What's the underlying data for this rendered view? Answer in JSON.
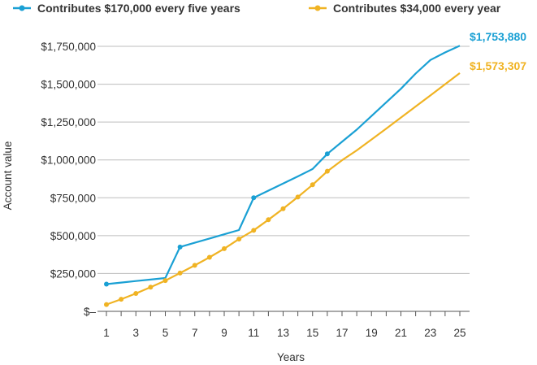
{
  "chart_data": {
    "type": "line",
    "title": "",
    "xlabel": "Years",
    "ylabel": "Account value",
    "x": [
      1,
      2,
      3,
      4,
      5,
      6,
      7,
      8,
      9,
      10,
      11,
      12,
      13,
      14,
      15,
      16,
      17,
      18,
      19,
      20,
      21,
      22,
      23,
      24,
      25
    ],
    "x_ticks": [
      "1",
      "3",
      "5",
      "7",
      "9",
      "11",
      "13",
      "15",
      "17",
      "19",
      "21",
      "23",
      "25"
    ],
    "x_tick_values": [
      1,
      3,
      5,
      7,
      9,
      11,
      13,
      15,
      17,
      19,
      21,
      23,
      25
    ],
    "xlim": [
      0.5,
      25.5
    ],
    "ylim": [
      0,
      1800000
    ],
    "y_ticks": [
      0,
      250000,
      500000,
      750000,
      1000000,
      1250000,
      1500000,
      1750000
    ],
    "y_tick_labels": [
      "$–",
      "$250,000",
      "$500,000",
      "$750,000",
      "$1,000,000",
      "$1,250,000",
      "$1,500,000",
      "$1,750,000"
    ],
    "grid": "horizontal",
    "legend_position": "top",
    "series": [
      {
        "name": "Contributes $170,000 every five years",
        "color": "#1aa0d4",
        "marker_points": [
          1,
          6,
          11,
          16
        ],
        "values": [
          180000,
          190000,
          200000,
          210000,
          220000,
          425000,
          453000,
          481000,
          509000,
          537000,
          750000,
          797000,
          844000,
          891000,
          940000,
          1040000,
          1120000,
          1200000,
          1290000,
          1380000,
          1470000,
          1570000,
          1660000,
          1710000,
          1753880
        ],
        "end_label": "$1,753,880"
      },
      {
        "name": "Contributes $34,000 every year",
        "color": "#f0b323",
        "marker_points": [
          1,
          2,
          3,
          4,
          5,
          6,
          7,
          8,
          9,
          10,
          11,
          12,
          13,
          14,
          15,
          16
        ],
        "values": [
          45000,
          80000,
          118000,
          160000,
          203000,
          253000,
          304000,
          357000,
          414000,
          477000,
          535000,
          605000,
          678000,
          755000,
          836000,
          925000,
          998000,
          1063000,
          1135000,
          1207000,
          1280000,
          1353000,
          1426000,
          1500000,
          1573307
        ],
        "end_label": "$1,573,307"
      }
    ]
  }
}
